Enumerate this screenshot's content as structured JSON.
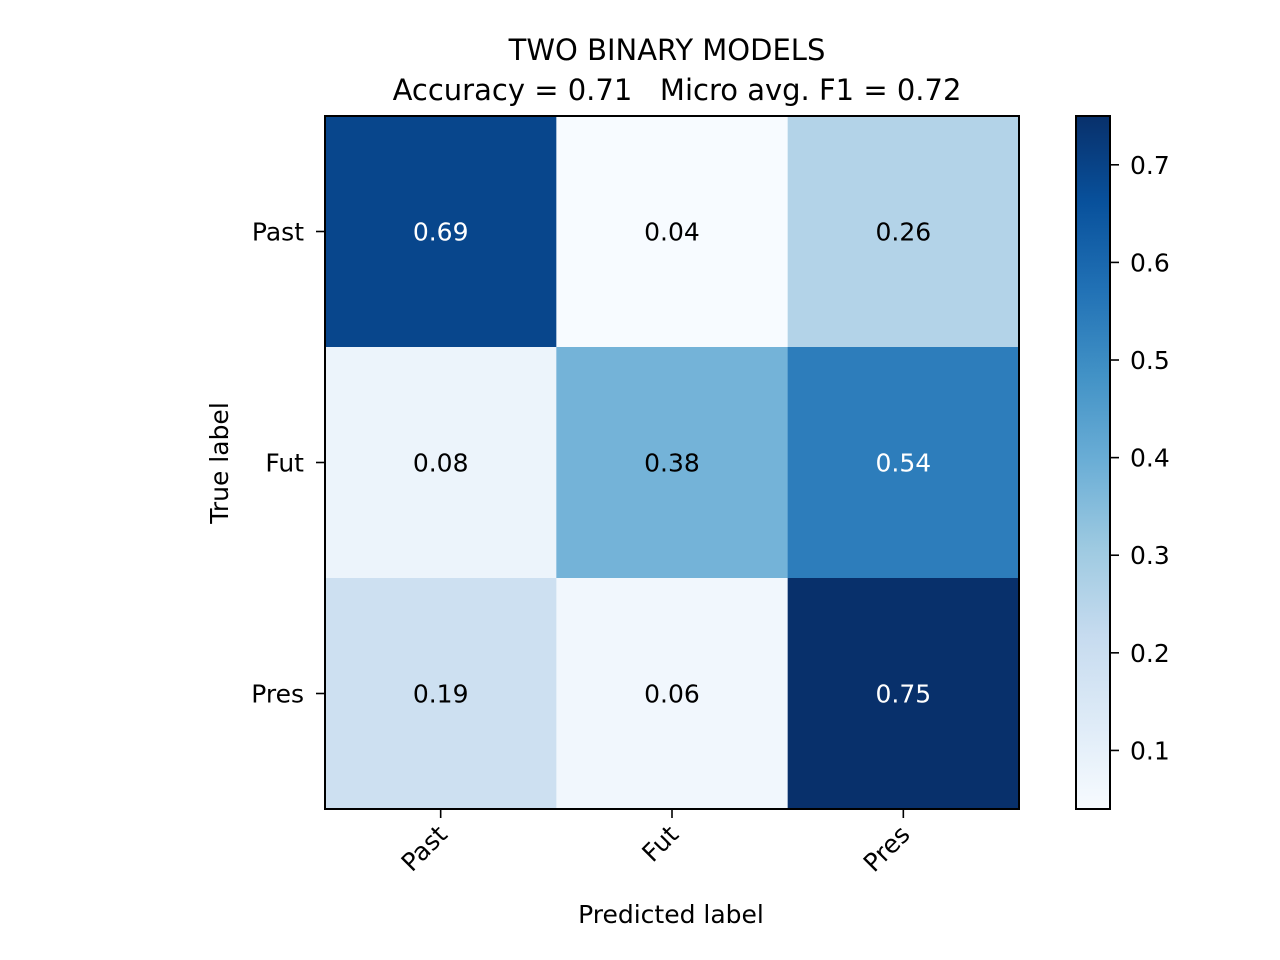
{
  "chart_data": {
    "type": "heatmap",
    "title": "TWO BINARY MODELS",
    "subtitle": "Accuracy = 0.71   Micro avg. F1 = 0.72",
    "xlabel": "Predicted label",
    "ylabel": "True label",
    "x_categories": [
      "Past",
      "Fut",
      "Pres"
    ],
    "y_categories": [
      "Past",
      "Fut",
      "Pres"
    ],
    "values": [
      [
        0.69,
        0.04,
        0.26
      ],
      [
        0.08,
        0.38,
        0.54
      ],
      [
        0.19,
        0.06,
        0.75
      ]
    ],
    "cell_labels": [
      [
        "0.69",
        "0.04",
        "0.26"
      ],
      [
        "0.08",
        "0.38",
        "0.54"
      ],
      [
        "0.19",
        "0.06",
        "0.75"
      ]
    ],
    "colormap": "Blues",
    "colorbar": {
      "range": [
        0.04,
        0.75
      ],
      "ticks": [
        0.1,
        0.2,
        0.3,
        0.4,
        0.5,
        0.6,
        0.7
      ],
      "tick_labels": [
        "0.1",
        "0.2",
        "0.3",
        "0.4",
        "0.5",
        "0.6",
        "0.7"
      ]
    },
    "grid": false
  }
}
